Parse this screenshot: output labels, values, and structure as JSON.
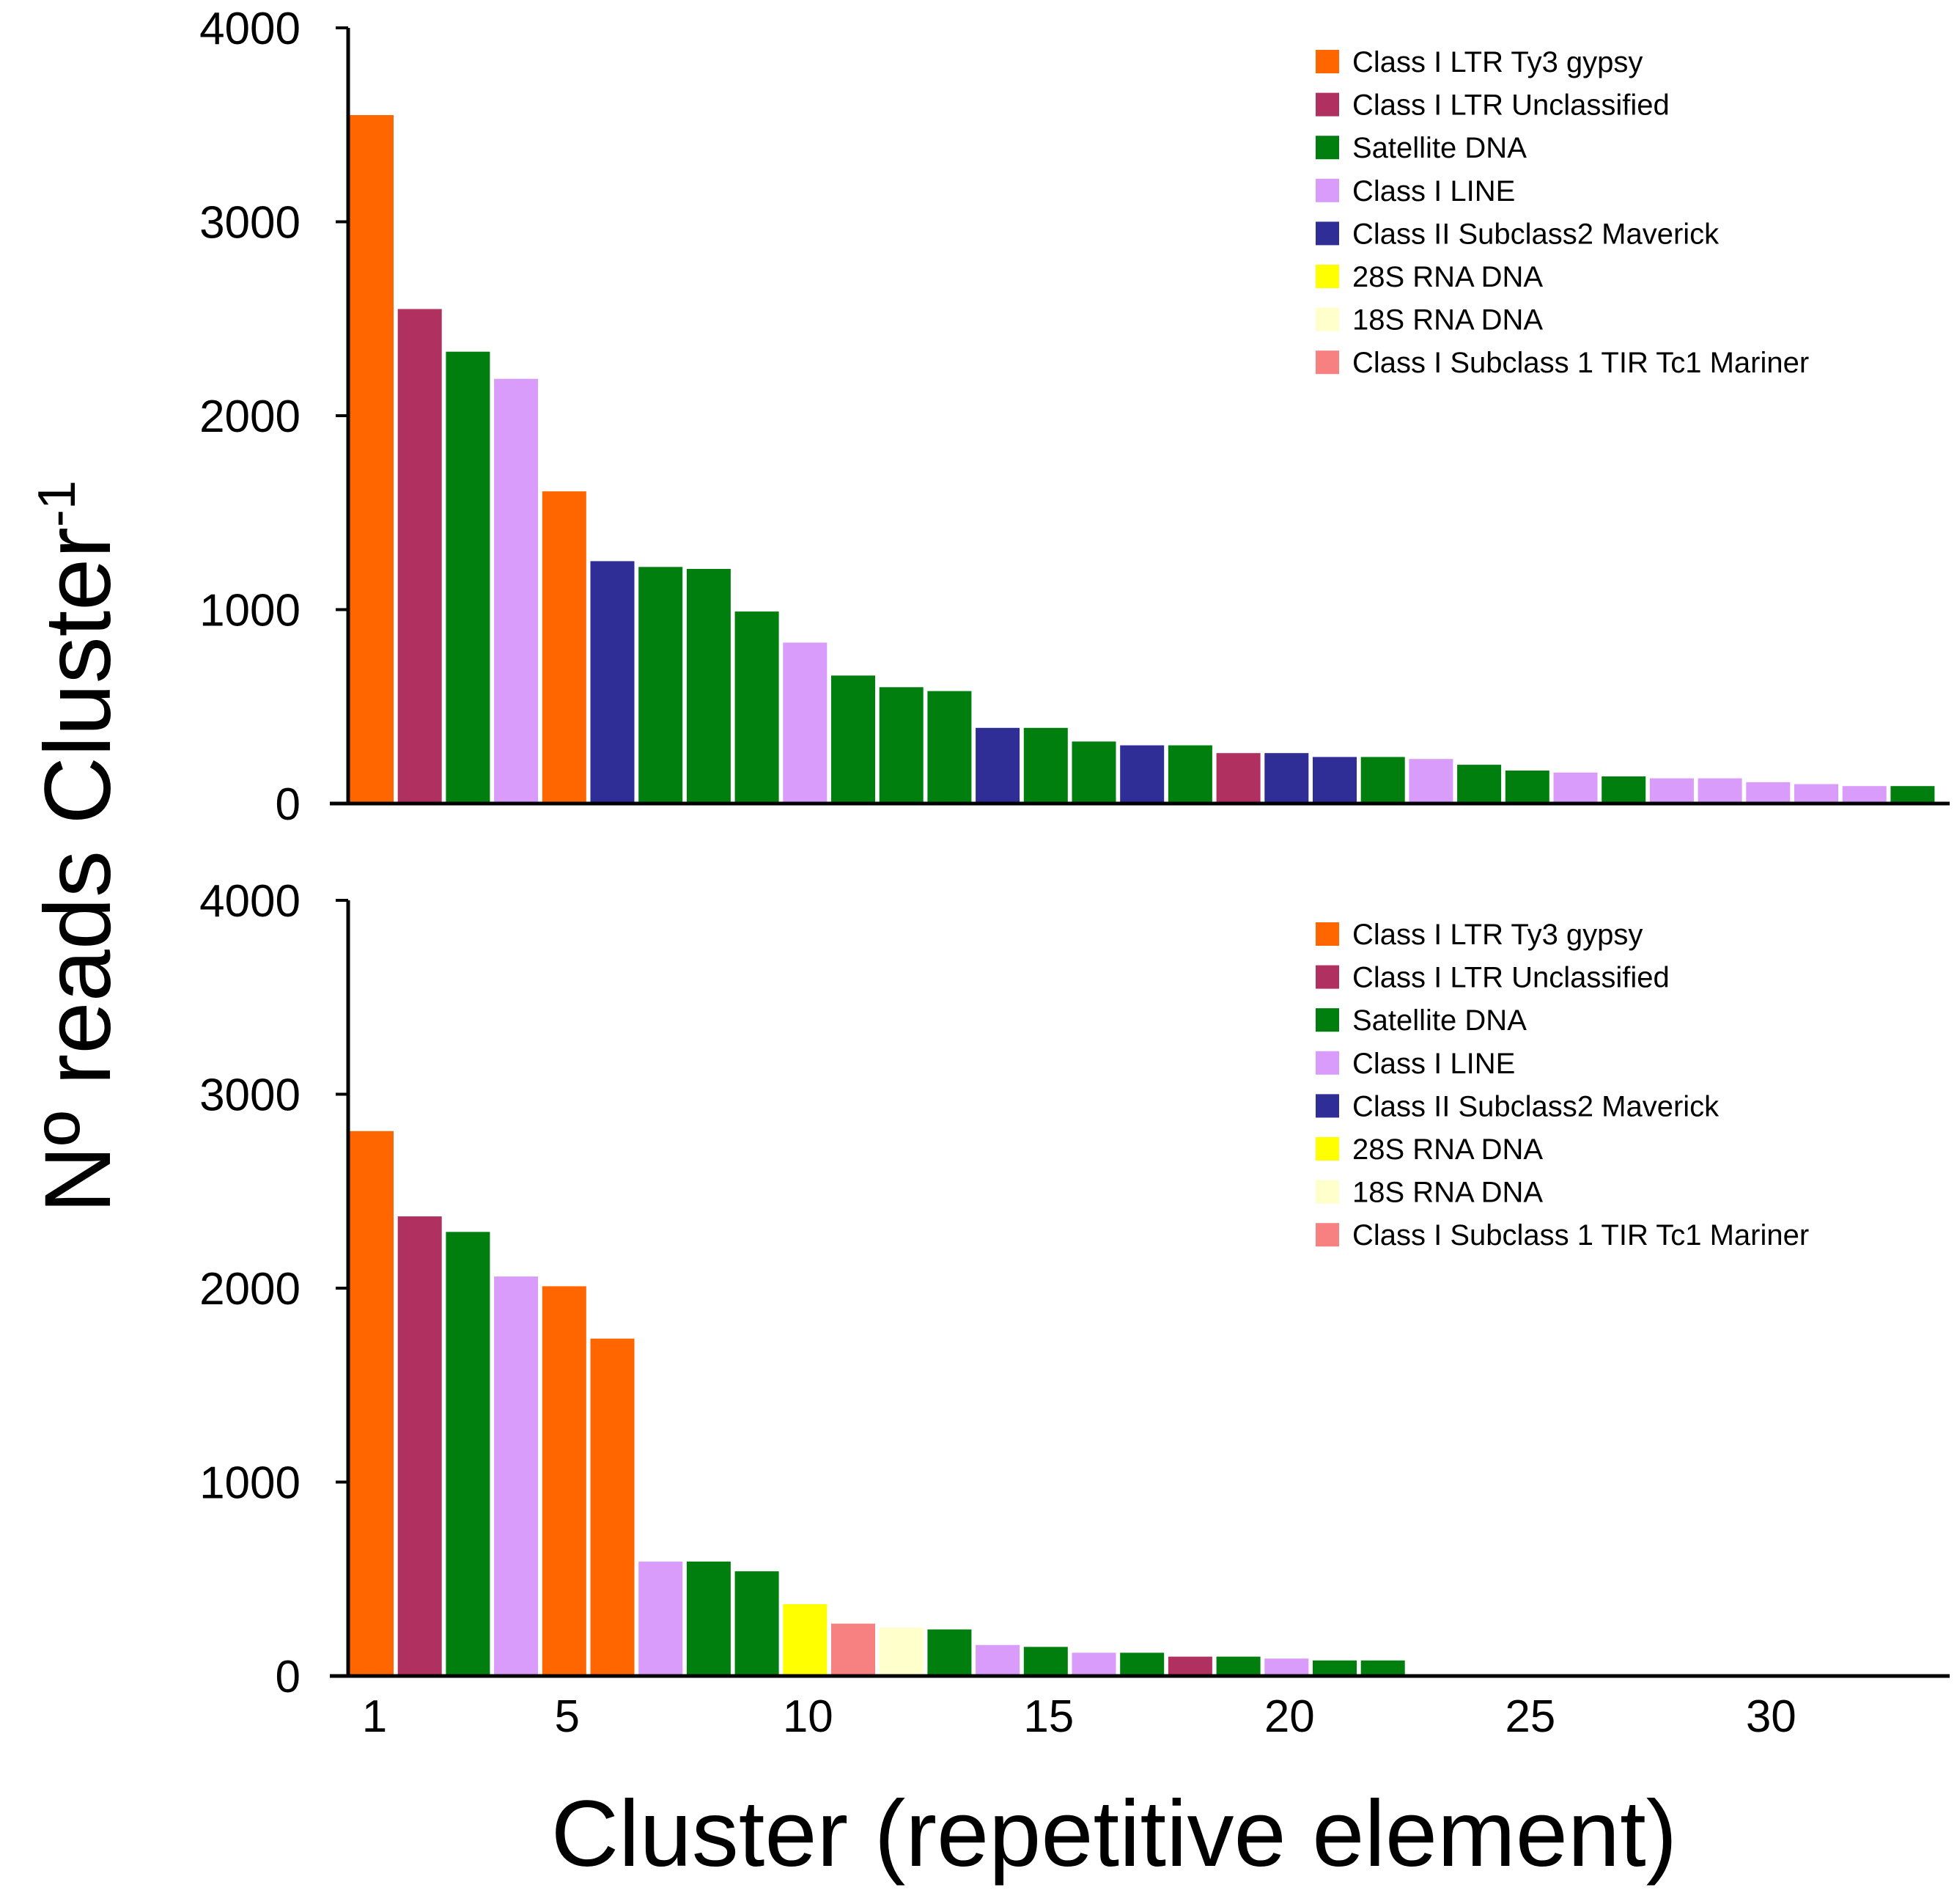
{
  "chart_data": {
    "type": "bar",
    "xlabel": "Cluster (repetitive element)",
    "ylabel": "Nº reads Cluster",
    "ylabel_superscript": "-1",
    "x_ticks": [
      "1",
      "5",
      "10",
      "15",
      "20",
      "25",
      "30"
    ],
    "categories": [
      "Class I LTR Ty3 gypsy",
      "Class I LTR Unclassified",
      "Satellite DNA",
      "Class I LINE",
      "Class II Subclass2 Maverick",
      "28S RNA DNA",
      "18S RNA DNA",
      "Class I  Subclass 1 TIR Tc1 Mariner"
    ],
    "colors": {
      "Class I LTR Ty3 gypsy": "#FF6600",
      "Class I LTR Unclassified": "#B03060",
      "Satellite DNA": "#007F0E",
      "Class I LINE": "#DA9CFA",
      "Class II Subclass2 Maverick": "#2E2E96",
      "28S RNA DNA": "#FFFF00",
      "18S RNA DNA": "#FFFFCC",
      "Class I  Subclass 1 TIR Tc1 Mariner": "#F78181"
    },
    "panels": [
      {
        "id": "top",
        "ylim": [
          0,
          4000
        ],
        "y_ticks": [
          "0",
          "1000",
          "2000",
          "3000",
          "4000"
        ],
        "legend": [
          "Class I LTR Ty3 gypsy",
          "Class I LTR Unclassified",
          "Satellite DNA",
          "Class I LINE",
          "Class II Subclass2 Maverick",
          "28S RNA DNA",
          "18S RNA DNA",
          "Class I  Subclass 1 TIR Tc1 Mariner"
        ],
        "bars": [
          {
            "cluster": 1,
            "value": 3550,
            "category": "Class I LTR Ty3 gypsy"
          },
          {
            "cluster": 2,
            "value": 2550,
            "category": "Class I LTR Unclassified"
          },
          {
            "cluster": 3,
            "value": 2330,
            "category": "Satellite DNA"
          },
          {
            "cluster": 4,
            "value": 2190,
            "category": "Class I LINE"
          },
          {
            "cluster": 5,
            "value": 1610,
            "category": "Class I LTR Ty3 gypsy"
          },
          {
            "cluster": 6,
            "value": 1250,
            "category": "Class II Subclass2 Maverick"
          },
          {
            "cluster": 7,
            "value": 1220,
            "category": "Satellite DNA"
          },
          {
            "cluster": 8,
            "value": 1210,
            "category": "Satellite DNA"
          },
          {
            "cluster": 9,
            "value": 990,
            "category": "Satellite DNA"
          },
          {
            "cluster": 10,
            "value": 830,
            "category": "Class I LINE"
          },
          {
            "cluster": 11,
            "value": 660,
            "category": "Satellite DNA"
          },
          {
            "cluster": 12,
            "value": 600,
            "category": "Satellite DNA"
          },
          {
            "cluster": 13,
            "value": 580,
            "category": "Satellite DNA"
          },
          {
            "cluster": 14,
            "value": 390,
            "category": "Class II Subclass2 Maverick"
          },
          {
            "cluster": 15,
            "value": 390,
            "category": "Satellite DNA"
          },
          {
            "cluster": 16,
            "value": 320,
            "category": "Satellite DNA"
          },
          {
            "cluster": 17,
            "value": 300,
            "category": "Class II Subclass2 Maverick"
          },
          {
            "cluster": 18,
            "value": 300,
            "category": "Satellite DNA"
          },
          {
            "cluster": 19,
            "value": 260,
            "category": "Class I LTR Unclassified"
          },
          {
            "cluster": 20,
            "value": 260,
            "category": "Class II Subclass2 Maverick"
          },
          {
            "cluster": 21,
            "value": 240,
            "category": "Class II Subclass2 Maverick"
          },
          {
            "cluster": 22,
            "value": 240,
            "category": "Satellite DNA"
          },
          {
            "cluster": 23,
            "value": 230,
            "category": "Class I LINE"
          },
          {
            "cluster": 24,
            "value": 200,
            "category": "Satellite DNA"
          },
          {
            "cluster": 25,
            "value": 170,
            "category": "Satellite DNA"
          },
          {
            "cluster": 26,
            "value": 160,
            "category": "Class I LINE"
          },
          {
            "cluster": 27,
            "value": 140,
            "category": "Satellite DNA"
          },
          {
            "cluster": 28,
            "value": 130,
            "category": "Class I LINE"
          },
          {
            "cluster": 29,
            "value": 130,
            "category": "Class I LINE"
          },
          {
            "cluster": 30,
            "value": 110,
            "category": "Class I LINE"
          },
          {
            "cluster": 31,
            "value": 100,
            "category": "Class I LINE"
          },
          {
            "cluster": 32,
            "value": 90,
            "category": "Class I LINE"
          },
          {
            "cluster": 33,
            "value": 90,
            "category": "Satellite DNA"
          }
        ]
      },
      {
        "id": "bottom",
        "ylim": [
          0,
          4000
        ],
        "y_ticks": [
          "0",
          "1000",
          "2000",
          "3000",
          "4000"
        ],
        "legend": [
          "Class I LTR Ty3 gypsy",
          "Class I LTR Unclassified",
          "Satellite DNA",
          "Class I LINE",
          "Class II Subclass2 Maverick",
          "28S RNA DNA",
          "18S RNA DNA",
          "Class I  Subclass 1 TIR Tc1 Mariner"
        ],
        "bars": [
          {
            "cluster": 1,
            "value": 2810,
            "category": "Class I LTR Ty3 gypsy"
          },
          {
            "cluster": 2,
            "value": 2370,
            "category": "Class I LTR Unclassified"
          },
          {
            "cluster": 3,
            "value": 2290,
            "category": "Satellite DNA"
          },
          {
            "cluster": 4,
            "value": 2060,
            "category": "Class I LINE"
          },
          {
            "cluster": 5,
            "value": 2010,
            "category": "Class I LTR Ty3 gypsy"
          },
          {
            "cluster": 6,
            "value": 1740,
            "category": "Class I LTR Ty3 gypsy"
          },
          {
            "cluster": 7,
            "value": 590,
            "category": "Class I LINE"
          },
          {
            "cluster": 8,
            "value": 590,
            "category": "Satellite DNA"
          },
          {
            "cluster": 9,
            "value": 540,
            "category": "Satellite DNA"
          },
          {
            "cluster": 10,
            "value": 370,
            "category": "28S RNA DNA"
          },
          {
            "cluster": 11,
            "value": 270,
            "category": "Class I  Subclass 1 TIR Tc1 Mariner"
          },
          {
            "cluster": 12,
            "value": 250,
            "category": "18S RNA DNA"
          },
          {
            "cluster": 13,
            "value": 240,
            "category": "Satellite DNA"
          },
          {
            "cluster": 14,
            "value": 160,
            "category": "Class I LINE"
          },
          {
            "cluster": 15,
            "value": 150,
            "category": "Satellite DNA"
          },
          {
            "cluster": 16,
            "value": 120,
            "category": "Class I LINE"
          },
          {
            "cluster": 17,
            "value": 120,
            "category": "Satellite DNA"
          },
          {
            "cluster": 18,
            "value": 100,
            "category": "Class I LTR Unclassified"
          },
          {
            "cluster": 19,
            "value": 100,
            "category": "Satellite DNA"
          },
          {
            "cluster": 20,
            "value": 90,
            "category": "Class I LINE"
          },
          {
            "cluster": 21,
            "value": 80,
            "category": "Satellite DNA"
          },
          {
            "cluster": 22,
            "value": 80,
            "category": "Satellite DNA"
          }
        ]
      }
    ]
  }
}
